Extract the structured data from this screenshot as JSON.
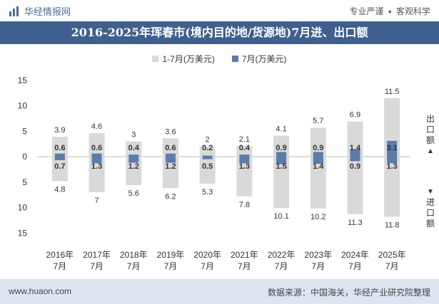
{
  "header": {
    "brand": "华经情报网",
    "tag1": "专业严谨",
    "tag2": "客观科学"
  },
  "title": "2016-2025年珲春市(境内目的地/货源地)7月进、出口额",
  "legend": {
    "series1": "1-7月(万美元)",
    "series2": "7月(万美元)"
  },
  "side_labels": {
    "export": "出口额",
    "import": "进口额"
  },
  "footer": {
    "url": "www.huaon.com",
    "source": "数据来源：中国海关，华经产业研究院整理"
  },
  "colors": {
    "title_bg": "#3f5f8f",
    "series1": "#d9d9d9",
    "series2": "#5b7bab",
    "footer_bg": "#dde6f0"
  },
  "chart_data": {
    "type": "bar",
    "categories": [
      "2016年\n7月",
      "2017年\n7月",
      "2018年\n7月",
      "2019年\n7月",
      "2020年\n7月",
      "2021年\n7月",
      "2022年\n7月",
      "2023年\n7月",
      "2024年\n7月",
      "2025年\n7月"
    ],
    "y_tick_labels": [
      "15",
      "10",
      "5",
      "0",
      "5",
      "10",
      "15"
    ],
    "ylim": [
      -15,
      15
    ],
    "series": [
      {
        "name": "1-7月(万美元)",
        "export": [
          3.9,
          4.6,
          3,
          3.6,
          2,
          2.1,
          4.1,
          5.7,
          6.9,
          11.5
        ],
        "import": [
          4.8,
          7,
          5.6,
          6.2,
          5.3,
          7.8,
          10.1,
          10.2,
          11.3,
          11.8
        ]
      },
      {
        "name": "7月(万美元)",
        "export": [
          0.6,
          0.6,
          0.4,
          0.6,
          0.2,
          0.4,
          0.9,
          0.9,
          1.4,
          3.1
        ],
        "import": [
          0.7,
          1.3,
          1.2,
          1.2,
          0.5,
          1.3,
          1.5,
          1.4,
          0.9,
          1.3
        ]
      }
    ],
    "grid": false,
    "legend_position": "top"
  }
}
